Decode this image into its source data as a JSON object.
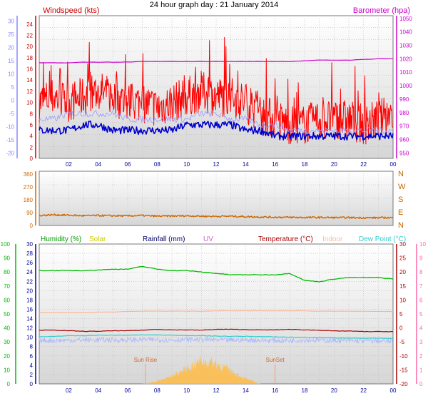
{
  "title": "24 hour graph day : 21 January 2014",
  "x_ticks": [
    "02",
    "04",
    "06",
    "08",
    "10",
    "12",
    "14",
    "16",
    "18",
    "20",
    "22",
    "00"
  ],
  "chart_data": [
    {
      "type": "line",
      "panel": "wind-baro",
      "left_label": "Windspeed (kts)",
      "right_label": "Barometer (hpa)",
      "left_ticks": [
        "0",
        "2",
        "4",
        "6",
        "8",
        "10",
        "12",
        "14",
        "16",
        "18",
        "20",
        "22",
        "24"
      ],
      "right_ticks": [
        "950",
        "960",
        "970",
        "980",
        "990",
        "1000",
        "1010",
        "1020",
        "1030",
        "1040",
        "1050"
      ],
      "far_left_ticks": [
        "-20",
        "-15",
        "-10",
        "-5",
        "0",
        "5",
        "10",
        "15",
        "20",
        "25",
        "30"
      ],
      "ylim": [
        0,
        25.5
      ],
      "baro_ylim": [
        946,
        1052
      ],
      "hours": [
        0,
        1,
        2,
        3,
        4,
        5,
        6,
        7,
        8,
        9,
        10,
        11,
        12,
        13,
        14,
        15,
        16,
        17,
        18,
        19,
        20,
        21,
        22,
        23,
        24
      ],
      "series": [
        {
          "role": "gust",
          "color": "#ff0000",
          "values": [
            10,
            11,
            10,
            11,
            12,
            11,
            10,
            10,
            9,
            10,
            11,
            12,
            11,
            11,
            10,
            8,
            7,
            6,
            6,
            7,
            7,
            7,
            6,
            7,
            8
          ]
        },
        {
          "role": "speed",
          "color": "#0000cc",
          "values": [
            5,
            5,
            5,
            6,
            6,
            5,
            5,
            5,
            5,
            5,
            6,
            6,
            6,
            6,
            5,
            5,
            4,
            4,
            4,
            4,
            4,
            4,
            4,
            4,
            4
          ]
        },
        {
          "role": "barometer",
          "color": "#cc00cc",
          "values": [
            1017,
            1017,
            1017,
            1017.5,
            1017.5,
            1017.5,
            1017.5,
            1018,
            1018,
            1018,
            1018,
            1018,
            1018,
            1018,
            1018,
            1018,
            1018,
            1018,
            1018.5,
            1019,
            1019,
            1019,
            1019.5,
            1020,
            1020
          ]
        },
        {
          "role": "light-blue",
          "color": "#9999ff",
          "values": [
            7,
            7,
            8,
            8,
            8,
            8,
            7,
            7,
            7,
            7,
            7,
            8,
            8,
            7,
            7,
            6,
            6,
            5,
            5,
            5,
            5,
            5,
            5,
            5,
            5
          ]
        }
      ]
    },
    {
      "type": "line",
      "panel": "wind-direction",
      "left_ticks": [
        "0",
        "90",
        "180",
        "270",
        "360"
      ],
      "right_ticks": [
        "N",
        "E",
        "S",
        "W",
        "N"
      ],
      "ylim": [
        0,
        380
      ],
      "hours": [
        0,
        1,
        2,
        3,
        4,
        5,
        6,
        7,
        8,
        9,
        10,
        11,
        12,
        13,
        14,
        15,
        16,
        17,
        18,
        19,
        20,
        21,
        22,
        23,
        24
      ],
      "series": [
        {
          "role": "direction",
          "color": "#cc6600",
          "values": [
            70,
            75,
            72,
            68,
            70,
            68,
            67,
            70,
            65,
            66,
            68,
            65,
            64,
            65,
            62,
            60,
            58,
            57,
            56,
            56,
            55,
            55,
            54,
            54,
            55
          ]
        }
      ]
    },
    {
      "type": "line",
      "panel": "temp-hum",
      "legend": [
        {
          "label": "Humidity (%)",
          "color": "#009900"
        },
        {
          "label": "Solar",
          "color": "#cccc00"
        },
        {
          "label": "Rainfall (mm)",
          "color": "#000066"
        },
        {
          "label": "UV",
          "color": "#cc66cc"
        },
        {
          "label": "Temperature (°C)",
          "color": "#aa0000"
        },
        {
          "label": "Indoor",
          "color": "#ffbb99"
        },
        {
          "label": "Dew Point (°C)",
          "color": "#33cccc"
        }
      ],
      "humidity_ticks": [
        "0",
        "10",
        "20",
        "30",
        "40",
        "50",
        "60",
        "70",
        "80",
        "90",
        "100"
      ],
      "rain_ticks": [
        "0",
        "2",
        "4",
        "6",
        "8",
        "10",
        "12",
        "14",
        "16",
        "18",
        "20",
        "22",
        "24",
        "26",
        "28",
        "30"
      ],
      "temp_ticks": [
        "-20",
        "-15",
        "-10",
        "-5",
        "0",
        "5",
        "10",
        "15",
        "20",
        "25",
        "30"
      ],
      "uv_ticks": [
        "0",
        "1",
        "2",
        "3",
        "4",
        "5",
        "6",
        "7",
        "8",
        "9",
        "10"
      ],
      "temp_ylim": [
        -20,
        30
      ],
      "hours": [
        0,
        1,
        2,
        3,
        4,
        5,
        6,
        7,
        8,
        9,
        10,
        11,
        12,
        13,
        14,
        15,
        16,
        17,
        18,
        19,
        20,
        21,
        22,
        23,
        24
      ],
      "series": [
        {
          "role": "humidity-as-temp",
          "color": "#00bb00",
          "values": [
            20.5,
            20.5,
            20.5,
            20.5,
            20.7,
            21,
            21,
            22,
            21,
            20.5,
            20.5,
            20,
            19.5,
            19,
            19,
            19,
            19,
            19.5,
            17,
            16.5,
            17.5,
            18,
            18,
            18,
            17.5
          ]
        },
        {
          "role": "indoor",
          "color": "#ffaa88",
          "values": [
            5.5,
            5.5,
            5.5,
            5.5,
            5.7,
            5.7,
            5.9,
            6,
            6,
            6,
            6,
            6,
            6.1,
            6.1,
            6.1,
            6.1,
            6.1,
            6.1,
            6.1,
            6,
            6,
            6,
            6,
            5.9,
            5.9
          ]
        },
        {
          "role": "temperature",
          "color": "#aa0000",
          "values": [
            -0.8,
            -0.8,
            -1,
            -1.2,
            -1.2,
            -1,
            -1,
            -0.8,
            -0.5,
            -0.7,
            -0.7,
            -0.8,
            -0.5,
            -0.5,
            -0.6,
            -0.7,
            -0.7,
            -0.5,
            -0.7,
            -0.8,
            -1.1,
            -1.1,
            -1.3,
            -1.3,
            -1.3
          ]
        },
        {
          "role": "dewpoint",
          "color": "#33cccc",
          "values": [
            -3.2,
            -3,
            -2.8,
            -2.8,
            -2.6,
            -2.6,
            -2.6,
            -2.5,
            -2.5,
            -2.6,
            -2.7,
            -2.8,
            -2.9,
            -3,
            -3,
            -3.1,
            -3.2,
            -3.3,
            -3.4,
            -3.5,
            -3.6,
            -3.6,
            -3.7,
            -3.7,
            -3.8
          ]
        },
        {
          "role": "uv-band",
          "color": "#aab8ff",
          "values": [
            -4.5,
            -4.5,
            -4.4,
            -4.3,
            -4.3,
            -4.3,
            -4.3,
            -4.2,
            -4.2,
            -4.3,
            -4.2,
            -4.2,
            -4.3,
            -4.4,
            -4.3,
            -4.4,
            -4.5,
            -4.5,
            -4.3,
            -4.4,
            -4.5,
            -4.6,
            -4.6,
            -4.7,
            -4.8
          ]
        }
      ],
      "solar": {
        "color": "#ffbb44",
        "hours": [
          7,
          8,
          9,
          10,
          11,
          12,
          13,
          14,
          15
        ],
        "values": [
          0,
          1,
          3,
          6,
          9,
          8,
          5,
          2,
          0
        ]
      },
      "markers": [
        {
          "label": "Sun Rise",
          "hour": 7.2
        },
        {
          "label": "SunSet",
          "hour": 16
        }
      ]
    }
  ]
}
